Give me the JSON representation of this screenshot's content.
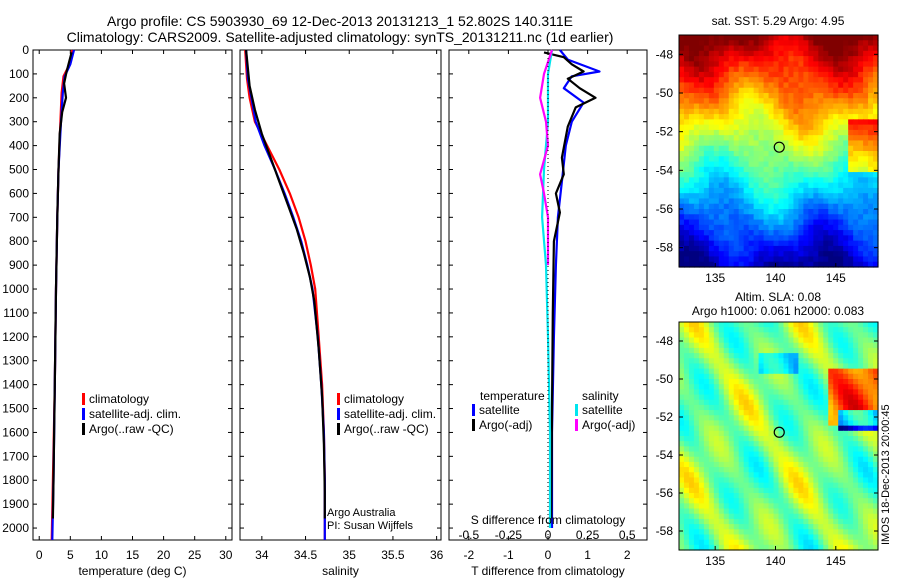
{
  "header": {
    "title_line1": "Argo profile: CS 5903930_69 12-Dec-2013 20131213_1 52.802S 140.311E",
    "title_line2": "Climatology: CARS2009. Satellite-adjusted climatology: synTS_20131211.nc (1d earlier)"
  },
  "colors": {
    "climatology": "#ff0000",
    "satellite": "#0000ff",
    "argo": "#000000",
    "sat_salinity": "#00e5ee",
    "argo_salinity": "#ff00ff"
  },
  "chart_data": [
    {
      "type": "line",
      "id": "temperature",
      "xlabel": "temperature (deg C)",
      "xlim": [
        -1,
        31
      ],
      "ylim": [
        2050,
        0
      ],
      "xticks": [
        0,
        5,
        10,
        15,
        20,
        25,
        30
      ],
      "yticks": [
        0,
        100,
        200,
        300,
        400,
        500,
        600,
        700,
        800,
        900,
        1000,
        1100,
        1200,
        1300,
        1400,
        1500,
        1600,
        1700,
        1800,
        1900,
        2000
      ],
      "legend": [
        "climatology",
        "satellite-adj. clim.",
        "Argo(..raw -QC)"
      ],
      "series": [
        {
          "name": "climatology",
          "color": "#ff0000",
          "points": [
            [
              5.3,
              0
            ],
            [
              4.9,
              60
            ],
            [
              3.9,
              110
            ],
            [
              3.6,
              180
            ],
            [
              3.4,
              300
            ],
            [
              3.1,
              500
            ],
            [
              2.9,
              700
            ],
            [
              2.7,
              1000
            ],
            [
              2.5,
              1400
            ],
            [
              2.2,
              1800
            ],
            [
              2.0,
              2050
            ]
          ]
        },
        {
          "name": "satellite-adj. clim.",
          "color": "#0000ff",
          "points": [
            [
              5.6,
              0
            ],
            [
              5.0,
              60
            ],
            [
              4.1,
              110
            ],
            [
              3.8,
              180
            ],
            [
              3.5,
              300
            ],
            [
              3.1,
              500
            ],
            [
              2.9,
              700
            ],
            [
              2.7,
              1000
            ],
            [
              2.5,
              1400
            ],
            [
              2.3,
              1800
            ],
            [
              2.1,
              2050
            ]
          ]
        },
        {
          "name": "Argo(..raw -QC)",
          "color": "#000000",
          "points": [
            [
              5.2,
              10
            ],
            [
              4.4,
              90
            ],
            [
              4.0,
              140
            ],
            [
              4.3,
              200
            ],
            [
              3.7,
              260
            ],
            [
              3.3,
              350
            ],
            [
              3.1,
              500
            ],
            [
              2.9,
              700
            ],
            [
              2.7,
              1000
            ],
            [
              2.5,
              1400
            ],
            [
              2.3,
              1800
            ],
            [
              2.2,
              1960
            ]
          ]
        }
      ]
    },
    {
      "type": "line",
      "id": "salinity",
      "xlabel": "salinity",
      "xlim": [
        33.75,
        36.05
      ],
      "ylim": [
        2050,
        0
      ],
      "xticks": [
        34,
        34.5,
        35,
        35.5,
        36
      ],
      "legend": [
        "climatology",
        "satellite-adj. clim.",
        "Argo(..raw -QC)"
      ],
      "annotations": [
        "Argo Australia",
        "PI: Susan Wijffels"
      ],
      "series": [
        {
          "name": "climatology",
          "color": "#ff0000",
          "points": [
            [
              33.81,
              0
            ],
            [
              33.83,
              120
            ],
            [
              33.86,
              200
            ],
            [
              33.92,
              300
            ],
            [
              34.06,
              400
            ],
            [
              34.2,
              500
            ],
            [
              34.32,
              600
            ],
            [
              34.42,
              700
            ],
            [
              34.5,
              800
            ],
            [
              34.56,
              900
            ],
            [
              34.61,
              1000
            ],
            [
              34.65,
              1200
            ],
            [
              34.69,
              1400
            ],
            [
              34.71,
              1600
            ],
            [
              34.72,
              1800
            ],
            [
              34.72,
              2050
            ]
          ]
        },
        {
          "name": "satellite-adj. clim.",
          "color": "#0000ff",
          "points": [
            [
              33.82,
              0
            ],
            [
              33.84,
              120
            ],
            [
              33.88,
              200
            ],
            [
              33.93,
              300
            ],
            [
              34.03,
              400
            ],
            [
              34.15,
              500
            ],
            [
              34.26,
              600
            ],
            [
              34.36,
              700
            ],
            [
              34.45,
              800
            ],
            [
              34.52,
              900
            ],
            [
              34.58,
              1000
            ],
            [
              34.64,
              1200
            ],
            [
              34.68,
              1400
            ],
            [
              34.71,
              1600
            ],
            [
              34.72,
              1800
            ],
            [
              34.72,
              2050
            ]
          ]
        },
        {
          "name": "Argo(..raw -QC)",
          "color": "#000000",
          "points": [
            [
              33.82,
              0
            ],
            [
              33.86,
              150
            ],
            [
              33.92,
              250
            ],
            [
              34.0,
              350
            ],
            [
              34.1,
              450
            ],
            [
              34.2,
              550
            ],
            [
              34.3,
              650
            ],
            [
              34.4,
              750
            ],
            [
              34.48,
              850
            ],
            [
              34.55,
              950
            ],
            [
              34.6,
              1050
            ],
            [
              34.65,
              1250
            ],
            [
              34.69,
              1450
            ],
            [
              34.71,
              1650
            ],
            [
              34.72,
              1850
            ],
            [
              34.72,
              1960
            ]
          ]
        }
      ]
    },
    {
      "type": "line",
      "id": "difference",
      "xlabel": "T difference from climatology",
      "x2label": "S difference from climatology",
      "xlim": [
        -2.5,
        2.5
      ],
      "ylim": [
        2050,
        0
      ],
      "xticks": [
        -2,
        -1,
        0,
        1,
        2
      ],
      "x2ticks": [
        "-0.5",
        "-0.25",
        "0",
        "0.25",
        "0.5"
      ],
      "legend_titles": [
        "temperature",
        "salinity"
      ],
      "legend": [
        "satellite",
        "Argo(-adj)",
        "satellite",
        "Argo(-adj)"
      ],
      "series": [
        {
          "name": "temperature satellite",
          "color": "#0000ff",
          "points": [
            [
              0.3,
              0
            ],
            [
              0.5,
              40
            ],
            [
              1.3,
              90
            ],
            [
              0.6,
              110
            ],
            [
              0.4,
              160
            ],
            [
              0.9,
              220
            ],
            [
              0.6,
              300
            ],
            [
              0.45,
              400
            ],
            [
              0.35,
              550
            ],
            [
              0.25,
              700
            ],
            [
              0.2,
              900
            ],
            [
              0.15,
              1200
            ],
            [
              0.1,
              1600
            ],
            [
              0.1,
              2000
            ]
          ]
        },
        {
          "name": "temperature Argo(-adj)",
          "color": "#000000",
          "points": [
            [
              -0.1,
              10
            ],
            [
              0.4,
              30
            ],
            [
              0.6,
              60
            ],
            [
              0.9,
              90
            ],
            [
              0.5,
              120
            ],
            [
              0.8,
              160
            ],
            [
              1.2,
              200
            ],
            [
              0.7,
              240
            ],
            [
              0.5,
              320
            ],
            [
              0.35,
              450
            ],
            [
              0.4,
              520
            ],
            [
              0.2,
              600
            ],
            [
              0.3,
              680
            ],
            [
              0.15,
              800
            ],
            [
              0.12,
              1100
            ],
            [
              0.1,
              1500
            ],
            [
              0.08,
              1960
            ]
          ]
        },
        {
          "name": "salinity satellite",
          "color": "#00e5ee",
          "points": [
            [
              0.1,
              0
            ],
            [
              0.0,
              100
            ],
            [
              0.0,
              300
            ],
            [
              -0.1,
              500
            ],
            [
              -0.15,
              700
            ],
            [
              -0.05,
              900
            ],
            [
              0.0,
              1200
            ],
            [
              0.05,
              1600
            ],
            [
              0.05,
              2000
            ]
          ]
        },
        {
          "name": "salinity Argo(-adj)",
          "color": "#ff00ff",
          "points": [
            [
              0.1,
              0
            ],
            [
              -0.1,
              100
            ],
            [
              -0.2,
              200
            ],
            [
              -0.05,
              300
            ],
            [
              0.0,
              400
            ],
            [
              -0.2,
              520
            ],
            [
              -0.1,
              600
            ],
            [
              0.0,
              700
            ],
            [
              0.0,
              900
            ]
          ]
        }
      ]
    },
    {
      "type": "heatmap",
      "id": "sst",
      "title": "sat. SST: 5.29 Argo: 4.95",
      "xticks": [
        135,
        140,
        145
      ],
      "yticks": [
        -48,
        -50,
        -52,
        -54,
        -56,
        -58
      ],
      "xlim": [
        132,
        148.5
      ],
      "ylim": [
        -59,
        -47
      ]
    },
    {
      "type": "heatmap",
      "id": "sla",
      "title_line1": "Altim. SLA: 0.08",
      "title_line2": "Argo h1000: 0.061 h2000: 0.083",
      "side_label": "IMOS 18-Dec-2013 20:00:45",
      "xticks": [
        135,
        140,
        145
      ],
      "yticks": [
        -48,
        -50,
        -52,
        -54,
        -56,
        -58
      ],
      "xlim": [
        132,
        148.5
      ],
      "ylim": [
        -59,
        -47
      ]
    }
  ]
}
